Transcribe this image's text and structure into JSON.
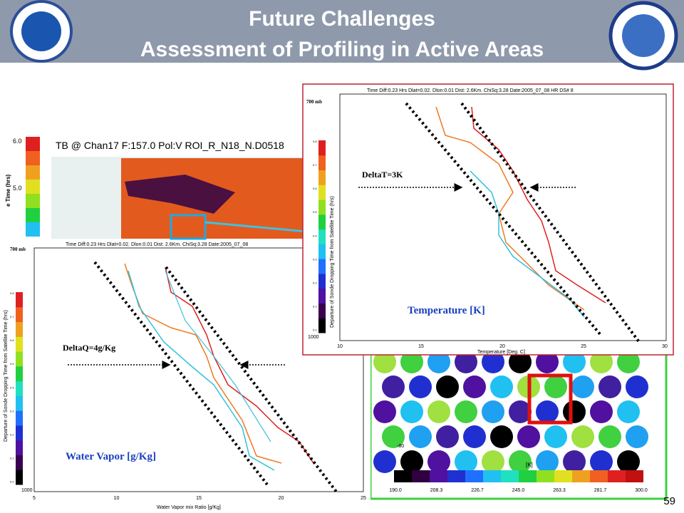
{
  "header": {
    "title_line1": "Future Challenges",
    "title_line2": "Assessment of Profiling in Active Areas"
  },
  "slide_number": "59",
  "map_panel": {
    "title": "TB @ Chan17 F:157.0 Pol:V   ROI_R_N18_N.D0518",
    "colorbar_ticks": [
      "6.0",
      "5.0"
    ],
    "y_label": "e Time (hrs)"
  },
  "temperature_panel": {
    "header": "Time Diff:0.23 Hrs  Dlat=0.02.  Dlon:0.01 Dist: 2.6Km.  ChiSq:3.28  Date:2005_07_08  HR DS# 8",
    "top_label": "700 mb",
    "bottom_label": "1000",
    "annotation": "DeltaT=3K",
    "caption": "Temperature [K]",
    "x_label": "Temperature [Deg. C]",
    "x_ticks": [
      "10",
      "15",
      "20",
      "25",
      "30"
    ],
    "y_label": "Departure of Sonde Dropping Time from Satellite Time (hrs)",
    "colorbar_ticks": [
      "0.8",
      "0.7",
      "0.6",
      "0.5",
      "0.4",
      "0.3",
      "0.2",
      "0.1",
      "0.0"
    ]
  },
  "vapor_panel": {
    "header": "Time Diff:0.23 Hrs  Dlat=0.02.  Dlon:0.01 Dist:  2.6Km.  ChiSq:3.28  Date:2005_07_08",
    "top_label": "700 mb",
    "bottom_label": "1000",
    "annotation": "DeltaQ=4g/Kg",
    "caption": "Water Vapor [g/Kg]",
    "x_label": "Water Vapor mix Ratio [g/Kg]",
    "x_ticks": [
      "5",
      "10",
      "15",
      "20",
      "25"
    ],
    "y_label": "Departure of Sonde Dropping Time from Satellite Time (hrs)",
    "colorbar_ticks": [
      "0.8",
      "0.7",
      "0.6",
      "0.5",
      "0.4",
      "0.3",
      "0.2",
      "0.1",
      "0.0"
    ]
  },
  "bottom_map": {
    "colorbar_ticks": [
      "190.0",
      "208.3",
      "226.7",
      "245.0",
      "263.3",
      "281.7",
      "300.0"
    ],
    "unit": "[K]",
    "lat_label": "-80"
  }
}
